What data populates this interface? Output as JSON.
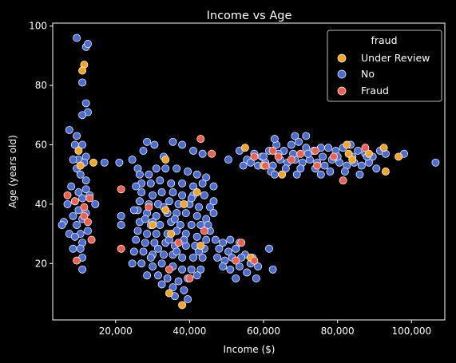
{
  "chart_data": {
    "type": "scatter",
    "title": "Income vs Age",
    "xlabel": "Income ($)",
    "ylabel": "Age (years old)",
    "xlim": [
      3000,
      109000
    ],
    "ylim": [
      1,
      101
    ],
    "xticks": [
      20000,
      40000,
      60000,
      80000,
      100000
    ],
    "xtick_labels": [
      "20,000",
      "40,000",
      "60,000",
      "80,000",
      "100,000"
    ],
    "yticks": [
      20,
      40,
      60,
      80,
      100
    ],
    "ytick_labels": [
      "20",
      "40",
      "60",
      "80",
      "100"
    ],
    "grid": false,
    "legend": {
      "title": "fraud",
      "placement": "top-right",
      "entries": [
        "Under Review",
        "No",
        "Fraud"
      ]
    },
    "colors": {
      "Under Review": "#f5a623",
      "No": "#4a6cd4",
      "Fraud": "#f0604d",
      "background": "#000000",
      "foreground": "#ffffff"
    },
    "series": [
      {
        "name": "No",
        "points": [
          [
            9500,
            96
          ],
          [
            12000,
            93
          ],
          [
            12500,
            94
          ],
          [
            11000,
            81
          ],
          [
            12000,
            74
          ],
          [
            12500,
            71
          ],
          [
            11000,
            70
          ],
          [
            7500,
            65
          ],
          [
            9500,
            63
          ],
          [
            9000,
            60
          ],
          [
            11000,
            60
          ],
          [
            12000,
            56
          ],
          [
            10000,
            55
          ],
          [
            8500,
            55
          ],
          [
            11500,
            54
          ],
          [
            9500,
            52
          ],
          [
            10500,
            50
          ],
          [
            12000,
            48
          ],
          [
            8000,
            46
          ],
          [
            10000,
            44
          ],
          [
            12000,
            45
          ],
          [
            13000,
            43
          ],
          [
            11000,
            42
          ],
          [
            9000,
            41
          ],
          [
            7000,
            40
          ],
          [
            14500,
            40
          ],
          [
            10000,
            38
          ],
          [
            12000,
            37
          ],
          [
            8500,
            36
          ],
          [
            11000,
            35
          ],
          [
            6000,
            34
          ],
          [
            9500,
            33
          ],
          [
            5500,
            33
          ],
          [
            12500,
            31
          ],
          [
            10500,
            30
          ],
          [
            7500,
            30
          ],
          [
            9000,
            29
          ],
          [
            11000,
            27
          ],
          [
            8500,
            25
          ],
          [
            10500,
            25
          ],
          [
            11000,
            22
          ],
          [
            11000,
            18
          ],
          [
            17000,
            54
          ],
          [
            21000,
            54
          ],
          [
            24500,
            55
          ],
          [
            26000,
            52
          ],
          [
            27500,
            58
          ],
          [
            28500,
            61
          ],
          [
            30500,
            60
          ],
          [
            33000,
            56
          ],
          [
            35500,
            61
          ],
          [
            38000,
            60
          ],
          [
            41000,
            58
          ],
          [
            43500,
            57
          ],
          [
            26500,
            50
          ],
          [
            29000,
            50
          ],
          [
            31000,
            52
          ],
          [
            33500,
            52
          ],
          [
            36500,
            52
          ],
          [
            39500,
            51
          ],
          [
            42000,
            50
          ],
          [
            44500,
            49
          ],
          [
            27000,
            47
          ],
          [
            29500,
            47
          ],
          [
            32000,
            48
          ],
          [
            35000,
            47
          ],
          [
            38000,
            47
          ],
          [
            41000,
            46
          ],
          [
            43500,
            47
          ],
          [
            46500,
            46
          ],
          [
            27000,
            44
          ],
          [
            30000,
            43
          ],
          [
            32500,
            44
          ],
          [
            35500,
            44
          ],
          [
            38000,
            43
          ],
          [
            41000,
            43
          ],
          [
            44000,
            43
          ],
          [
            46500,
            41
          ],
          [
            26500,
            41
          ],
          [
            29000,
            40
          ],
          [
            31500,
            40
          ],
          [
            34500,
            41
          ],
          [
            37000,
            40
          ],
          [
            40000,
            40
          ],
          [
            42500,
            39
          ],
          [
            45500,
            39
          ],
          [
            26000,
            38
          ],
          [
            28500,
            37
          ],
          [
            31000,
            36
          ],
          [
            34000,
            37
          ],
          [
            36500,
            37
          ],
          [
            39000,
            37
          ],
          [
            42000,
            36
          ],
          [
            44500,
            35
          ],
          [
            26500,
            34
          ],
          [
            29500,
            33
          ],
          [
            32000,
            33
          ],
          [
            35000,
            34
          ],
          [
            37500,
            33
          ],
          [
            40500,
            33
          ],
          [
            43000,
            33
          ],
          [
            45500,
            31
          ],
          [
            26000,
            31
          ],
          [
            28500,
            30
          ],
          [
            31000,
            30
          ],
          [
            34000,
            30
          ],
          [
            36500,
            31
          ],
          [
            39000,
            30
          ],
          [
            42000,
            29
          ],
          [
            44500,
            28
          ],
          [
            25500,
            28
          ],
          [
            28000,
            27
          ],
          [
            30500,
            27
          ],
          [
            33500,
            27
          ],
          [
            36000,
            26
          ],
          [
            39000,
            26
          ],
          [
            41500,
            26
          ],
          [
            44000,
            25
          ],
          [
            25000,
            24
          ],
          [
            27500,
            24
          ],
          [
            30000,
            23
          ],
          [
            33000,
            23
          ],
          [
            35500,
            23
          ],
          [
            38000,
            22
          ],
          [
            41000,
            22
          ],
          [
            43500,
            22
          ],
          [
            24500,
            20
          ],
          [
            27000,
            20
          ],
          [
            30000,
            19
          ],
          [
            32500,
            20
          ],
          [
            35500,
            19
          ],
          [
            38000,
            18
          ],
          [
            40500,
            18
          ],
          [
            43000,
            18
          ],
          [
            28500,
            16
          ],
          [
            31500,
            16
          ],
          [
            34000,
            15
          ],
          [
            37000,
            14
          ],
          [
            39500,
            15
          ],
          [
            42000,
            16
          ],
          [
            32500,
            13
          ],
          [
            35500,
            12
          ],
          [
            38500,
            11
          ],
          [
            36000,
            9
          ],
          [
            39500,
            8
          ],
          [
            21500,
            36
          ],
          [
            21500,
            33
          ],
          [
            25500,
            46
          ],
          [
            25000,
            38
          ],
          [
            33000,
            39
          ],
          [
            36000,
            35
          ],
          [
            30000,
            34
          ],
          [
            40500,
            42
          ],
          [
            28000,
            35
          ],
          [
            34500,
            28
          ],
          [
            38500,
            28
          ],
          [
            31500,
            25
          ],
          [
            36500,
            24
          ],
          [
            29500,
            22
          ],
          [
            42500,
            24
          ],
          [
            45000,
            33
          ],
          [
            46500,
            37
          ],
          [
            47000,
            28
          ],
          [
            49000,
            27
          ],
          [
            51000,
            28
          ],
          [
            53500,
            27
          ],
          [
            48000,
            25
          ],
          [
            50500,
            24
          ],
          [
            52500,
            25
          ],
          [
            55000,
            23
          ],
          [
            47500,
            22
          ],
          [
            49500,
            21
          ],
          [
            51500,
            22
          ],
          [
            54000,
            22
          ],
          [
            57000,
            22
          ],
          [
            49000,
            19
          ],
          [
            51000,
            18
          ],
          [
            53500,
            19
          ],
          [
            56500,
            20
          ],
          [
            52500,
            15
          ],
          [
            58500,
            19
          ],
          [
            61500,
            25
          ],
          [
            62500,
            18
          ],
          [
            55500,
            17
          ],
          [
            58000,
            15
          ],
          [
            50500,
            55
          ],
          [
            53500,
            58
          ],
          [
            55500,
            55
          ],
          [
            57500,
            57
          ],
          [
            59500,
            56
          ],
          [
            61500,
            58
          ],
          [
            63500,
            60
          ],
          [
            65500,
            58
          ],
          [
            67500,
            60
          ],
          [
            69500,
            61
          ],
          [
            71500,
            59
          ],
          [
            73500,
            58
          ],
          [
            75500,
            59
          ],
          [
            77500,
            59
          ],
          [
            79500,
            58
          ],
          [
            81500,
            59
          ],
          [
            83500,
            60
          ],
          [
            85500,
            58
          ],
          [
            87500,
            57
          ],
          [
            89500,
            56
          ],
          [
            54500,
            53
          ],
          [
            56500,
            54
          ],
          [
            58500,
            53
          ],
          [
            60500,
            54
          ],
          [
            62500,
            53
          ],
          [
            64500,
            55
          ],
          [
            66500,
            54
          ],
          [
            68500,
            55
          ],
          [
            70500,
            54
          ],
          [
            72500,
            55
          ],
          [
            74500,
            54
          ],
          [
            76500,
            53
          ],
          [
            78500,
            55
          ],
          [
            80500,
            54
          ],
          [
            82500,
            53
          ],
          [
            84500,
            54
          ],
          [
            86500,
            53
          ],
          [
            88500,
            54
          ],
          [
            60000,
            56
          ],
          [
            64000,
            57
          ],
          [
            68000,
            57
          ],
          [
            72000,
            57
          ],
          [
            76000,
            56
          ],
          [
            80000,
            56
          ],
          [
            84000,
            56
          ],
          [
            88000,
            56
          ],
          [
            62000,
            51
          ],
          [
            66000,
            52
          ],
          [
            70000,
            52
          ],
          [
            74000,
            52
          ],
          [
            78000,
            51
          ],
          [
            82000,
            51
          ],
          [
            86000,
            50
          ],
          [
            63000,
            62
          ],
          [
            68500,
            63
          ],
          [
            71500,
            63
          ],
          [
            69000,
            50
          ],
          [
            75500,
            50
          ],
          [
            91500,
            58
          ],
          [
            93000,
            57
          ],
          [
            98000,
            57
          ],
          [
            106500,
            54
          ],
          [
            63000,
            50
          ],
          [
            90500,
            52
          ]
        ]
      },
      {
        "name": "Under Review",
        "points": [
          [
            11500,
            87
          ],
          [
            11000,
            85
          ],
          [
            10000,
            58
          ],
          [
            14000,
            54
          ],
          [
            10500,
            53
          ],
          [
            33500,
            55
          ],
          [
            38000,
            6
          ],
          [
            34500,
            10
          ],
          [
            42000,
            44
          ],
          [
            33500,
            38
          ],
          [
            38500,
            40
          ],
          [
            30000,
            33
          ],
          [
            35000,
            30
          ],
          [
            43000,
            26
          ],
          [
            56500,
            22
          ],
          [
            55000,
            59
          ],
          [
            65000,
            50
          ],
          [
            82500,
            60
          ],
          [
            84000,
            55
          ],
          [
            88500,
            57
          ],
          [
            92500,
            59
          ],
          [
            93000,
            51
          ],
          [
            96500,
            56
          ],
          [
            60000,
            53
          ],
          [
            83000,
            57
          ]
        ]
      },
      {
        "name": "Fraud",
        "points": [
          [
            7000,
            43
          ],
          [
            9000,
            41
          ],
          [
            11500,
            39
          ],
          [
            11500,
            36
          ],
          [
            13500,
            28
          ],
          [
            9500,
            21
          ],
          [
            13000,
            42
          ],
          [
            12500,
            34
          ],
          [
            43000,
            62
          ],
          [
            46000,
            57
          ],
          [
            40000,
            15
          ],
          [
            21500,
            45
          ],
          [
            21500,
            25
          ],
          [
            29000,
            39
          ],
          [
            37000,
            27
          ],
          [
            44000,
            31
          ],
          [
            57500,
            56
          ],
          [
            60500,
            53
          ],
          [
            62500,
            58
          ],
          [
            64000,
            56
          ],
          [
            67500,
            55
          ],
          [
            70000,
            57
          ],
          [
            74000,
            58
          ],
          [
            74500,
            53
          ],
          [
            79000,
            56
          ],
          [
            81500,
            48
          ],
          [
            87500,
            59
          ],
          [
            54000,
            27
          ],
          [
            52500,
            21
          ],
          [
            57500,
            21
          ],
          [
            34500,
            18
          ]
        ]
      }
    ]
  }
}
